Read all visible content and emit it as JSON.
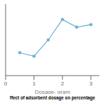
{
  "chart_data": {
    "type": "line",
    "xlabel": "Dosage- gram",
    "caption": "ffect of adsorbent dosage on percentage",
    "x": [
      0.5,
      1.0,
      1.5,
      2.0,
      2.5,
      3.0
    ],
    "values": [
      88.5,
      87.8,
      91.0,
      95.0,
      93.5,
      94.0
    ],
    "color": "#6aafd4",
    "marker": "o",
    "xlim": [
      0,
      3.3
    ],
    "ylim": [
      84,
      98
    ],
    "xticks": [
      0,
      1,
      2,
      3
    ],
    "tick_labels": "x",
    "grid": false
  }
}
